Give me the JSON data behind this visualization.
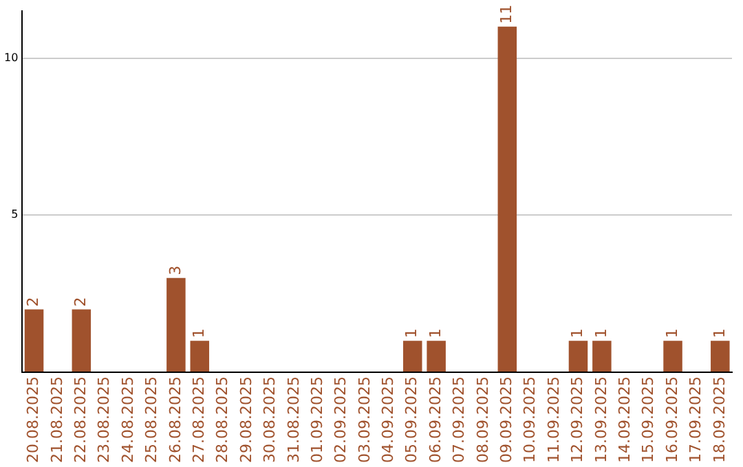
{
  "chart_data": {
    "type": "bar",
    "categories": [
      "20.08.2025",
      "21.08.2025",
      "22.08.2025",
      "23.08.2025",
      "24.08.2025",
      "25.08.2025",
      "26.08.2025",
      "27.08.2025",
      "28.08.2025",
      "29.08.2025",
      "30.08.2025",
      "31.08.2025",
      "01.09.2025",
      "02.09.2025",
      "03.09.2025",
      "04.09.2025",
      "05.09.2025",
      "06.09.2025",
      "07.09.2025",
      "08.09.2025",
      "09.09.2025",
      "10.09.2025",
      "11.09.2025",
      "12.09.2025",
      "13.09.2025",
      "14.09.2025",
      "15.09.2025",
      "16.09.2025",
      "17.09.2025",
      "18.09.2025"
    ],
    "values": [
      2,
      0,
      2,
      0,
      0,
      0,
      3,
      1,
      0,
      0,
      0,
      0,
      0,
      0,
      0,
      0,
      1,
      1,
      0,
      0,
      11,
      0,
      0,
      1,
      1,
      0,
      0,
      1,
      0,
      1
    ],
    "value_labels": [
      "2",
      null,
      "2",
      null,
      null,
      null,
      "3",
      "1",
      null,
      null,
      null,
      null,
      null,
      null,
      null,
      null,
      "1",
      "1",
      null,
      null,
      "11",
      null,
      null,
      "1",
      "1",
      null,
      null,
      "1",
      null,
      "1"
    ],
    "color": "#a0522d",
    "ylim": [
      0,
      11.5
    ],
    "yticks": [
      {
        "value": 0,
        "label": null
      },
      5,
      10
    ],
    "grid": "y",
    "legend": false
  }
}
